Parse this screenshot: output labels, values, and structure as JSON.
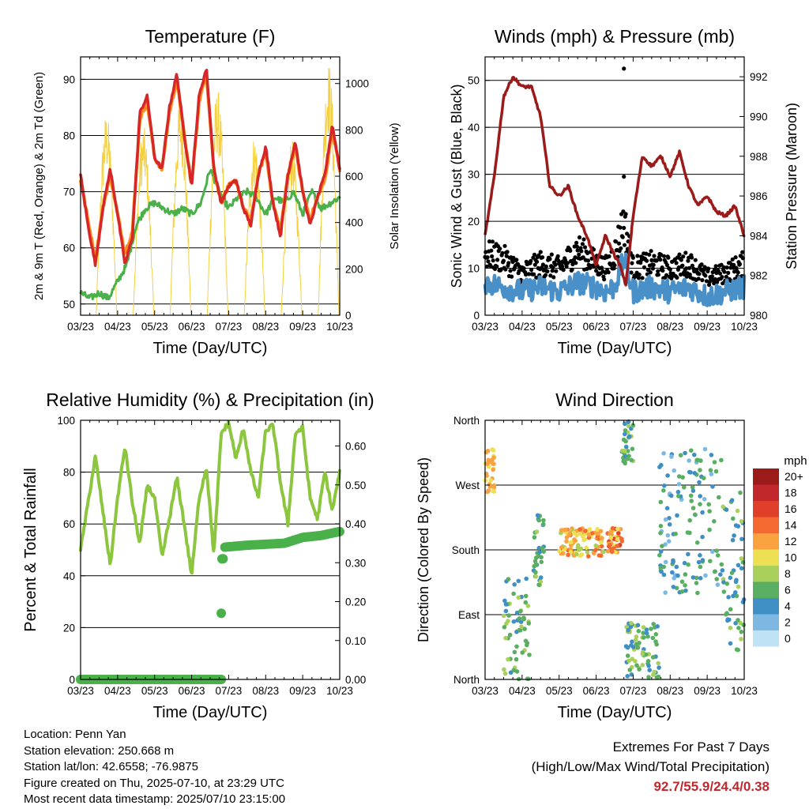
{
  "chart_data": [
    {
      "type": "line",
      "title": "Temperature (F)",
      "xlabel": "Time (Day/UTC)",
      "ylabel": "2m & 9m T (Red, Orange) & 2m Td (Green)",
      "y2label": "Solar Insolation (Yellow)",
      "x_ticks": [
        "03/23",
        "04/23",
        "05/23",
        "06/23",
        "07/23",
        "08/23",
        "09/23",
        "10/23"
      ],
      "ylim": [
        48,
        94
      ],
      "y_ticks": [
        50,
        60,
        70,
        80,
        90
      ],
      "y2lim": [
        0,
        1115
      ],
      "y2_ticks": [
        0,
        200,
        400,
        600,
        800,
        1000
      ],
      "grid": true,
      "colors": {
        "t2m": "#d62728",
        "t9m": "#ff8c1a",
        "td2m": "#4ab04a",
        "solar": "#f4d03f"
      },
      "series": [
        {
          "key": "t2m",
          "x": [
            0,
            0.2,
            0.4,
            0.6,
            0.8,
            1.0,
            1.2,
            1.4,
            1.6,
            1.8,
            2.0,
            2.2,
            2.4,
            2.6,
            2.8,
            3.0,
            3.2,
            3.4,
            3.6,
            3.8,
            4.0,
            4.2,
            4.4,
            4.6,
            4.8,
            5.0,
            5.2,
            5.4,
            5.6,
            5.8,
            6.0,
            6.2,
            6.4,
            6.6,
            6.8,
            7.0
          ],
          "values": [
            73,
            64,
            57,
            67,
            74,
            66,
            57,
            62,
            84,
            87,
            76,
            74,
            85,
            91,
            80,
            71,
            87,
            92,
            74,
            68,
            71,
            72,
            67,
            64,
            73,
            78,
            68,
            62,
            73,
            79,
            70,
            64,
            69,
            73,
            82,
            74
          ]
        },
        {
          "key": "t9m",
          "x": [
            0,
            0.2,
            0.4,
            0.6,
            0.8,
            1.0,
            1.2,
            1.4,
            1.6,
            1.8,
            2.0,
            2.2,
            2.4,
            2.6,
            2.8,
            3.0,
            3.2,
            3.4,
            3.6,
            3.8,
            4.0,
            4.2,
            4.4,
            4.6,
            4.8,
            5.0,
            5.2,
            5.4,
            5.6,
            5.8,
            6.0,
            6.2,
            6.4,
            6.6,
            6.8,
            7.0
          ],
          "values": [
            72,
            65,
            58,
            67,
            73,
            66,
            59,
            63,
            83,
            86,
            76,
            74,
            84,
            90,
            80,
            71,
            86,
            91,
            74,
            68,
            71,
            72,
            67,
            65,
            73,
            77,
            68,
            63,
            73,
            78,
            70,
            65,
            69,
            72,
            81,
            74
          ]
        },
        {
          "key": "td2m",
          "x": [
            0,
            0.25,
            0.5,
            0.75,
            1.0,
            1.25,
            1.5,
            1.75,
            2.0,
            2.25,
            2.5,
            2.75,
            3.0,
            3.25,
            3.5,
            3.75,
            4.0,
            4.25,
            4.5,
            4.75,
            5.0,
            5.25,
            5.5,
            5.75,
            6.0,
            6.25,
            6.5,
            6.75,
            7.0
          ],
          "values": [
            52,
            51,
            52,
            51,
            54,
            57,
            64,
            67,
            68,
            67,
            66,
            67,
            66,
            68,
            74,
            70,
            67,
            69,
            70,
            69,
            66,
            69,
            68,
            70,
            66,
            70,
            67,
            68,
            69
          ]
        }
      ],
      "solar_peaks": [
        {
          "day": 0.7,
          "value": 880
        },
        {
          "day": 1.7,
          "value": 820
        },
        {
          "day": 2.7,
          "value": 940
        },
        {
          "day": 3.7,
          "value": 980
        },
        {
          "day": 4.7,
          "value": 780
        },
        {
          "day": 5.7,
          "value": 760
        },
        {
          "day": 6.7,
          "value": 1100
        }
      ]
    },
    {
      "type": "line",
      "title": "Winds (mph) & Pressure (mb)",
      "xlabel": "Time (Day/UTC)",
      "ylabel": "Sonic Wind & Gust (Blue, Black)",
      "y2label": "Station Pressure (Maroon)",
      "x_ticks": [
        "03/23",
        "04/23",
        "05/23",
        "06/23",
        "07/23",
        "08/23",
        "09/23",
        "10/23"
      ],
      "ylim": [
        0,
        55
      ],
      "y_ticks": [
        0,
        10,
        20,
        30,
        40,
        50
      ],
      "y2lim": [
        980,
        993
      ],
      "y2_ticks": [
        980,
        982,
        984,
        986,
        988,
        990,
        992
      ],
      "grid": true,
      "colors": {
        "wind": "#4a90c8",
        "gust": "#000000",
        "pressure": "#9b1b1b"
      },
      "wind_mean": {
        "x": [
          0,
          0.5,
          1,
          1.5,
          2,
          2.5,
          3,
          3.25,
          3.5,
          3.75,
          4,
          4.5,
          5,
          5.5,
          6,
          6.5,
          7
        ],
        "values": [
          7,
          6,
          5,
          6,
          5,
          7,
          6,
          5,
          6,
          12,
          5,
          6,
          5,
          6,
          4,
          5,
          6
        ]
      },
      "gust_env": {
        "x": [
          0,
          0.5,
          1,
          1.5,
          2,
          2.5,
          3,
          3.25,
          3.5,
          3.75,
          4,
          4.5,
          5,
          5.5,
          6,
          6.5,
          7
        ],
        "values": [
          13,
          12,
          9,
          11,
          10,
          14,
          11,
          10,
          13,
          20,
          10,
          11,
          10,
          11,
          8,
          9,
          11
        ]
      },
      "gust_outliers": [
        {
          "x": 3.75,
          "y": 52.5
        },
        {
          "x": 3.75,
          "y": 29.5
        }
      ],
      "pressure": {
        "x": [
          0,
          0.25,
          0.5,
          0.75,
          1.0,
          1.25,
          1.5,
          1.75,
          2.0,
          2.25,
          2.5,
          2.75,
          3.0,
          3.25,
          3.5,
          3.65,
          3.8,
          4.0,
          4.25,
          4.5,
          4.75,
          5.0,
          5.25,
          5.5,
          5.75,
          6.0,
          6.25,
          6.5,
          6.75,
          7.0
        ],
        "values": [
          984,
          987,
          991,
          992,
          991.5,
          991.5,
          990,
          986.5,
          986,
          986.5,
          985,
          984,
          982.5,
          984,
          983,
          982.5,
          981.5,
          985,
          988,
          987.5,
          988,
          987,
          988.2,
          986.5,
          985.5,
          986,
          985.2,
          985,
          985.5,
          984
        ]
      }
    },
    {
      "type": "line",
      "title": "Relative Humidity (%) & Precipitation (in)",
      "xlabel": "Time (Day/UTC)",
      "ylabel": "Percent & Total Rainfall",
      "x_ticks": [
        "03/23",
        "04/23",
        "05/23",
        "06/23",
        "07/23",
        "08/23",
        "09/23",
        "10/23"
      ],
      "ylim": [
        0,
        100
      ],
      "y_ticks": [
        0,
        20,
        40,
        60,
        80,
        100
      ],
      "y2lim": [
        0,
        0.666
      ],
      "y2_ticks": [
        "0.00",
        "0.10",
        "0.20",
        "0.30",
        "0.40",
        "0.50",
        "0.60"
      ],
      "grid": true,
      "colors": {
        "rh": "#8cc63f",
        "precip": "#4ab04a"
      },
      "rh": {
        "x": [
          0,
          0.2,
          0.4,
          0.6,
          0.8,
          1.0,
          1.2,
          1.4,
          1.6,
          1.8,
          2.0,
          2.2,
          2.4,
          2.6,
          2.8,
          3.0,
          3.2,
          3.4,
          3.6,
          3.8,
          4.0,
          4.2,
          4.4,
          4.6,
          4.8,
          5.0,
          5.2,
          5.4,
          5.6,
          5.8,
          6.0,
          6.2,
          6.4,
          6.6,
          6.8,
          7.0
        ],
        "values": [
          50,
          68,
          86,
          65,
          44,
          70,
          90,
          68,
          52,
          75,
          70,
          47,
          62,
          78,
          60,
          40,
          70,
          82,
          48,
          95,
          99,
          85,
          97,
          80,
          70,
          96,
          98,
          76,
          60,
          95,
          97,
          70,
          62,
          80,
          65,
          80
        ]
      },
      "precip": {
        "x": [
          0,
          3.8,
          3.8,
          3.85,
          3.9,
          4.5,
          5.5,
          6.0,
          6.5,
          7.0
        ],
        "values": [
          0,
          0,
          0.17,
          0.31,
          0.34,
          0.345,
          0.35,
          0.365,
          0.37,
          0.38
        ]
      }
    },
    {
      "type": "scatter",
      "title": "Wind Direction",
      "xlabel": "Time (Day/UTC)",
      "ylabel": "Direction (Colored By Speed)",
      "x_ticks": [
        "03/23",
        "04/23",
        "05/23",
        "06/23",
        "07/23",
        "08/23",
        "09/23",
        "10/23"
      ],
      "y_ticks": [
        "North",
        "East",
        "South",
        "West",
        "North"
      ],
      "ylim": [
        0,
        360
      ],
      "grid": true,
      "colorbar": {
        "title": "mph",
        "labels": [
          "20+",
          "18",
          "16",
          "14",
          "12",
          "10",
          "8",
          "6",
          "4",
          "2",
          "0"
        ],
        "colors": [
          "#9b1b1b",
          "#c1272d",
          "#e0402a",
          "#f26a30",
          "#f9a23f",
          "#ede055",
          "#a8d05a",
          "#5aae61",
          "#3f8fc4",
          "#7db8e3",
          "#bfe2f5"
        ]
      },
      "clusters": [
        {
          "x": [
            0,
            0.25
          ],
          "y": [
            260,
            320
          ],
          "speed": [
            10,
            13
          ]
        },
        {
          "x": [
            0.5,
            1.2
          ],
          "y": [
            0,
            140
          ],
          "speed": [
            3,
            9
          ]
        },
        {
          "x": [
            1.3,
            1.6
          ],
          "y": [
            130,
            230
          ],
          "speed": [
            3,
            8
          ]
        },
        {
          "x": [
            2.0,
            3.2
          ],
          "y": [
            170,
            210
          ],
          "speed": [
            8,
            15
          ]
        },
        {
          "x": [
            3.3,
            3.7
          ],
          "y": [
            175,
            210
          ],
          "speed": [
            10,
            16
          ]
        },
        {
          "x": [
            3.7,
            4.0
          ],
          "y": [
            300,
            360
          ],
          "speed": [
            3,
            8
          ]
        },
        {
          "x": [
            3.8,
            4.7
          ],
          "y": [
            0,
            80
          ],
          "speed": [
            3,
            9
          ]
        },
        {
          "x": [
            4.7,
            6.4
          ],
          "y": [
            120,
            320
          ],
          "speed": [
            2,
            7
          ]
        },
        {
          "x": [
            6.4,
            7.0
          ],
          "y": [
            40,
            260
          ],
          "speed": [
            3,
            8
          ]
        }
      ]
    }
  ],
  "info": {
    "location": "Location: Penn Yan",
    "elevation": "Station elevation: 250.668 m",
    "latlon": "Station lat/lon: 42.6558; -76.9875",
    "created": "Figure created on Thu, 2025-07-10, at 23:29 UTC",
    "recent": "Most recent data timestamp: 2025/07/10 23:15:00"
  },
  "extremes": {
    "line1": "Extremes For Past 7 Days",
    "line2": "(High/Low/Max Wind/Total Precipitation)",
    "values": "92.7/55.9/24.4/0.38"
  }
}
